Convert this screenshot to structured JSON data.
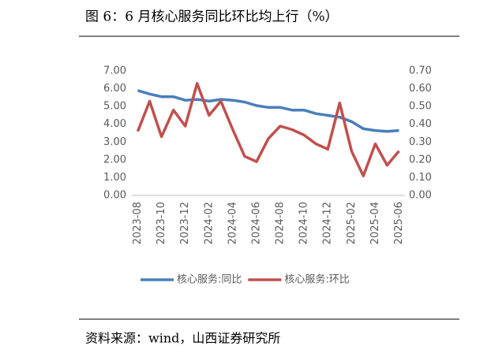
{
  "chart_data": {
    "type": "line",
    "title": "图 6：6 月核心服务同比环比均上行（%）",
    "source": "资料来源：wind，山西证券研究所",
    "categories": [
      "2023-08",
      null,
      "2023-10",
      null,
      "2023-12",
      null,
      "2024-02",
      null,
      "2024-04",
      null,
      "2024-06",
      null,
      "2024-08",
      null,
      "2024-10",
      null,
      "2024-12",
      null,
      "2025-02",
      null,
      "2025-04",
      null,
      "2025-06"
    ],
    "series": [
      {
        "name": "核心服务:同比",
        "color": "#4a7ebb",
        "values": [
          5.9,
          5.7,
          5.55,
          5.55,
          5.35,
          5.4,
          5.3,
          5.4,
          5.35,
          5.25,
          5.05,
          4.95,
          4.95,
          4.8,
          4.8,
          4.6,
          4.5,
          4.4,
          4.15,
          3.75,
          3.65,
          3.6,
          3.65
        ]
      },
      {
        "name": "核心服务:环比",
        "color": "#c0504d",
        "axis": "y2",
        "values": [
          0.36,
          0.53,
          0.33,
          0.48,
          0.39,
          0.63,
          0.45,
          0.53,
          0.37,
          0.22,
          0.19,
          0.32,
          0.39,
          0.37,
          0.34,
          0.29,
          0.26,
          0.52,
          0.25,
          0.11,
          0.29,
          0.17,
          0.25
        ]
      }
    ],
    "ylim": [
      0,
      7
    ],
    "yticks": [
      {
        "value": 0,
        "label": "0.00"
      },
      {
        "value": 1,
        "label": "1.00"
      },
      {
        "value": 2,
        "label": "2.00"
      },
      {
        "value": 3,
        "label": "3.00"
      },
      {
        "value": 4,
        "label": "4.00"
      },
      {
        "value": 5,
        "label": "5.00"
      },
      {
        "value": 6,
        "label": "6.00"
      },
      {
        "value": 7,
        "label": "7.00"
      }
    ],
    "y2lim": [
      0,
      0.7
    ],
    "y2ticks": [
      {
        "value": 0,
        "label": "0.00"
      },
      {
        "value": 0.1,
        "label": "0.10"
      },
      {
        "value": 0.2,
        "label": "0.20"
      },
      {
        "value": 0.3,
        "label": "0.30"
      },
      {
        "value": 0.4,
        "label": "0.40"
      },
      {
        "value": 0.5,
        "label": "0.50"
      },
      {
        "value": 0.6,
        "label": "0.60"
      },
      {
        "value": 0.7,
        "label": "0.70"
      }
    ],
    "grid": false,
    "legend": "bottom"
  }
}
